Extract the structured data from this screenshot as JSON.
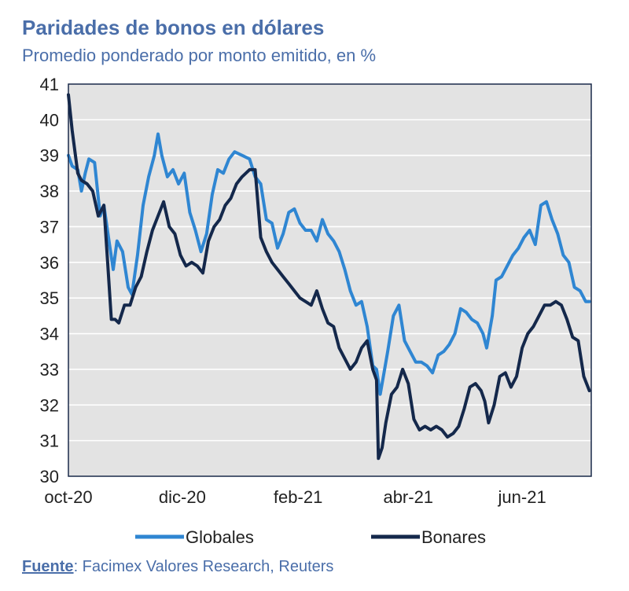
{
  "header": {
    "title": "Paridades de bonos en dólares",
    "subtitle": "Promedio ponderado por monto emitido, en %"
  },
  "source": {
    "label": "Fuente",
    "text": ": Facimex Valores Research, Reuters"
  },
  "colors": {
    "globales": "#2f86d2",
    "bonares": "#14284b",
    "plot_bg": "#e3e3e3",
    "text_accent": "#4a6ea9"
  },
  "chart_data": {
    "type": "line",
    "title": "Paridades de bonos en dólares",
    "subtitle": "Promedio ponderado por monto emitido, en %",
    "xlabel": "",
    "ylabel": "",
    "ylim": [
      30,
      41
    ],
    "yticks": [
      30,
      31,
      32,
      33,
      34,
      35,
      36,
      37,
      38,
      39,
      40,
      41
    ],
    "x_start": "2020-10-01",
    "x_end": "2021-07-08",
    "xticks": [
      {
        "label": "oct-20",
        "date": "2020-10-01"
      },
      {
        "label": "dic-20",
        "date": "2020-12-01"
      },
      {
        "label": "feb-21",
        "date": "2021-02-01"
      },
      {
        "label": "abr-21",
        "date": "2021-04-01"
      },
      {
        "label": "jun-21",
        "date": "2021-06-01"
      }
    ],
    "grid": true,
    "legend_position": "bottom",
    "series": [
      {
        "name": "Globales",
        "points": [
          [
            "2020-10-01",
            39.0
          ],
          [
            "2020-10-03",
            38.7
          ],
          [
            "2020-10-06",
            38.6
          ],
          [
            "2020-10-08",
            38.0
          ],
          [
            "2020-10-10",
            38.5
          ],
          [
            "2020-10-12",
            38.9
          ],
          [
            "2020-10-15",
            38.8
          ],
          [
            "2020-10-18",
            37.3
          ],
          [
            "2020-10-20",
            37.6
          ],
          [
            "2020-10-23",
            36.5
          ],
          [
            "2020-10-25",
            35.8
          ],
          [
            "2020-10-27",
            36.6
          ],
          [
            "2020-10-30",
            36.3
          ],
          [
            "2020-11-02",
            35.3
          ],
          [
            "2020-11-04",
            35.1
          ],
          [
            "2020-11-07",
            36.2
          ],
          [
            "2020-11-10",
            37.6
          ],
          [
            "2020-11-13",
            38.4
          ],
          [
            "2020-11-16",
            39.0
          ],
          [
            "2020-11-18",
            39.6
          ],
          [
            "2020-11-20",
            39.0
          ],
          [
            "2020-11-23",
            38.4
          ],
          [
            "2020-11-26",
            38.6
          ],
          [
            "2020-11-29",
            38.2
          ],
          [
            "2020-12-02",
            38.5
          ],
          [
            "2020-12-05",
            37.4
          ],
          [
            "2020-12-08",
            36.9
          ],
          [
            "2020-12-11",
            36.3
          ],
          [
            "2020-12-14",
            36.8
          ],
          [
            "2020-12-17",
            37.9
          ],
          [
            "2020-12-20",
            38.6
          ],
          [
            "2020-12-23",
            38.5
          ],
          [
            "2020-12-26",
            38.9
          ],
          [
            "2020-12-29",
            39.1
          ],
          [
            "2021-01-02",
            39.0
          ],
          [
            "2021-01-06",
            38.9
          ],
          [
            "2021-01-09",
            38.4
          ],
          [
            "2021-01-12",
            38.2
          ],
          [
            "2021-01-15",
            37.2
          ],
          [
            "2021-01-18",
            37.1
          ],
          [
            "2021-01-21",
            36.4
          ],
          [
            "2021-01-24",
            36.8
          ],
          [
            "2021-01-27",
            37.4
          ],
          [
            "2021-01-30",
            37.5
          ],
          [
            "2021-02-02",
            37.1
          ],
          [
            "2021-02-05",
            36.9
          ],
          [
            "2021-02-08",
            36.9
          ],
          [
            "2021-02-11",
            36.6
          ],
          [
            "2021-02-14",
            37.2
          ],
          [
            "2021-02-17",
            36.8
          ],
          [
            "2021-02-20",
            36.6
          ],
          [
            "2021-02-23",
            36.3
          ],
          [
            "2021-02-26",
            35.8
          ],
          [
            "2021-03-01",
            35.2
          ],
          [
            "2021-03-04",
            34.8
          ],
          [
            "2021-03-07",
            34.9
          ],
          [
            "2021-03-10",
            34.2
          ],
          [
            "2021-03-13",
            33.1
          ],
          [
            "2021-03-15",
            33.0
          ],
          [
            "2021-03-17",
            32.3
          ],
          [
            "2021-03-19",
            32.9
          ],
          [
            "2021-03-21",
            33.5
          ],
          [
            "2021-03-24",
            34.5
          ],
          [
            "2021-03-27",
            34.8
          ],
          [
            "2021-03-30",
            33.8
          ],
          [
            "2021-04-02",
            33.5
          ],
          [
            "2021-04-05",
            33.2
          ],
          [
            "2021-04-08",
            33.2
          ],
          [
            "2021-04-11",
            33.1
          ],
          [
            "2021-04-14",
            32.9
          ],
          [
            "2021-04-17",
            33.4
          ],
          [
            "2021-04-20",
            33.5
          ],
          [
            "2021-04-23",
            33.7
          ],
          [
            "2021-04-26",
            34.0
          ],
          [
            "2021-04-29",
            34.7
          ],
          [
            "2021-05-02",
            34.6
          ],
          [
            "2021-05-05",
            34.4
          ],
          [
            "2021-05-08",
            34.3
          ],
          [
            "2021-05-11",
            34.0
          ],
          [
            "2021-05-13",
            33.6
          ],
          [
            "2021-05-16",
            34.5
          ],
          [
            "2021-05-18",
            35.5
          ],
          [
            "2021-05-21",
            35.6
          ],
          [
            "2021-05-24",
            35.9
          ],
          [
            "2021-05-27",
            36.2
          ],
          [
            "2021-05-30",
            36.4
          ],
          [
            "2021-06-02",
            36.7
          ],
          [
            "2021-06-05",
            36.9
          ],
          [
            "2021-06-08",
            36.5
          ],
          [
            "2021-06-11",
            37.6
          ],
          [
            "2021-06-14",
            37.7
          ],
          [
            "2021-06-17",
            37.2
          ],
          [
            "2021-06-20",
            36.8
          ],
          [
            "2021-06-23",
            36.2
          ],
          [
            "2021-06-26",
            36.0
          ],
          [
            "2021-06-29",
            35.3
          ],
          [
            "2021-07-02",
            35.2
          ],
          [
            "2021-07-05",
            34.9
          ],
          [
            "2021-07-07",
            34.9
          ]
        ]
      },
      {
        "name": "Bonares",
        "points": [
          [
            "2020-10-01",
            40.7
          ],
          [
            "2020-10-03",
            39.7
          ],
          [
            "2020-10-06",
            38.5
          ],
          [
            "2020-10-08",
            38.3
          ],
          [
            "2020-10-11",
            38.2
          ],
          [
            "2020-10-14",
            38.0
          ],
          [
            "2020-10-17",
            37.3
          ],
          [
            "2020-10-20",
            37.6
          ],
          [
            "2020-10-22",
            36.0
          ],
          [
            "2020-10-24",
            34.4
          ],
          [
            "2020-10-26",
            34.4
          ],
          [
            "2020-10-28",
            34.3
          ],
          [
            "2020-10-31",
            34.8
          ],
          [
            "2020-11-03",
            34.8
          ],
          [
            "2020-11-06",
            35.3
          ],
          [
            "2020-11-09",
            35.6
          ],
          [
            "2020-11-12",
            36.3
          ],
          [
            "2020-11-15",
            36.9
          ],
          [
            "2020-11-18",
            37.3
          ],
          [
            "2020-11-21",
            37.7
          ],
          [
            "2020-11-24",
            37.0
          ],
          [
            "2020-11-27",
            36.8
          ],
          [
            "2020-11-30",
            36.2
          ],
          [
            "2020-12-03",
            35.9
          ],
          [
            "2020-12-06",
            36.0
          ],
          [
            "2020-12-09",
            35.9
          ],
          [
            "2020-12-12",
            35.7
          ],
          [
            "2020-12-15",
            36.6
          ],
          [
            "2020-12-18",
            37.0
          ],
          [
            "2020-12-21",
            37.2
          ],
          [
            "2020-12-24",
            37.6
          ],
          [
            "2020-12-27",
            37.8
          ],
          [
            "2020-12-30",
            38.2
          ],
          [
            "2021-01-02",
            38.4
          ],
          [
            "2021-01-06",
            38.6
          ],
          [
            "2021-01-09",
            38.6
          ],
          [
            "2021-01-12",
            36.7
          ],
          [
            "2021-01-15",
            36.3
          ],
          [
            "2021-01-18",
            36.0
          ],
          [
            "2021-01-21",
            35.8
          ],
          [
            "2021-01-24",
            35.6
          ],
          [
            "2021-01-27",
            35.4
          ],
          [
            "2021-01-30",
            35.2
          ],
          [
            "2021-02-02",
            35.0
          ],
          [
            "2021-02-05",
            34.9
          ],
          [
            "2021-02-08",
            34.8
          ],
          [
            "2021-02-11",
            35.2
          ],
          [
            "2021-02-14",
            34.7
          ],
          [
            "2021-02-17",
            34.3
          ],
          [
            "2021-02-20",
            34.2
          ],
          [
            "2021-02-23",
            33.6
          ],
          [
            "2021-02-26",
            33.3
          ],
          [
            "2021-03-01",
            33.0
          ],
          [
            "2021-03-04",
            33.2
          ],
          [
            "2021-03-07",
            33.6
          ],
          [
            "2021-03-10",
            33.8
          ],
          [
            "2021-03-13",
            33.0
          ],
          [
            "2021-03-15",
            32.7
          ],
          [
            "2021-03-16",
            30.5
          ],
          [
            "2021-03-18",
            30.8
          ],
          [
            "2021-03-20",
            31.5
          ],
          [
            "2021-03-23",
            32.3
          ],
          [
            "2021-03-26",
            32.5
          ],
          [
            "2021-03-29",
            33.0
          ],
          [
            "2021-04-01",
            32.6
          ],
          [
            "2021-04-04",
            31.6
          ],
          [
            "2021-04-07",
            31.3
          ],
          [
            "2021-04-10",
            31.4
          ],
          [
            "2021-04-13",
            31.3
          ],
          [
            "2021-04-16",
            31.4
          ],
          [
            "2021-04-19",
            31.3
          ],
          [
            "2021-04-22",
            31.1
          ],
          [
            "2021-04-25",
            31.2
          ],
          [
            "2021-04-28",
            31.4
          ],
          [
            "2021-05-01",
            31.9
          ],
          [
            "2021-05-04",
            32.5
          ],
          [
            "2021-05-07",
            32.6
          ],
          [
            "2021-05-10",
            32.4
          ],
          [
            "2021-05-12",
            32.1
          ],
          [
            "2021-05-14",
            31.5
          ],
          [
            "2021-05-17",
            32.0
          ],
          [
            "2021-05-20",
            32.8
          ],
          [
            "2021-05-23",
            32.9
          ],
          [
            "2021-05-26",
            32.5
          ],
          [
            "2021-05-29",
            32.8
          ],
          [
            "2021-06-01",
            33.6
          ],
          [
            "2021-06-04",
            34.0
          ],
          [
            "2021-06-07",
            34.2
          ],
          [
            "2021-06-10",
            34.5
          ],
          [
            "2021-06-13",
            34.8
          ],
          [
            "2021-06-16",
            34.8
          ],
          [
            "2021-06-19",
            34.9
          ],
          [
            "2021-06-22",
            34.8
          ],
          [
            "2021-06-25",
            34.4
          ],
          [
            "2021-06-28",
            33.9
          ],
          [
            "2021-07-01",
            33.8
          ],
          [
            "2021-07-04",
            32.8
          ],
          [
            "2021-07-07",
            32.4
          ]
        ]
      }
    ]
  }
}
